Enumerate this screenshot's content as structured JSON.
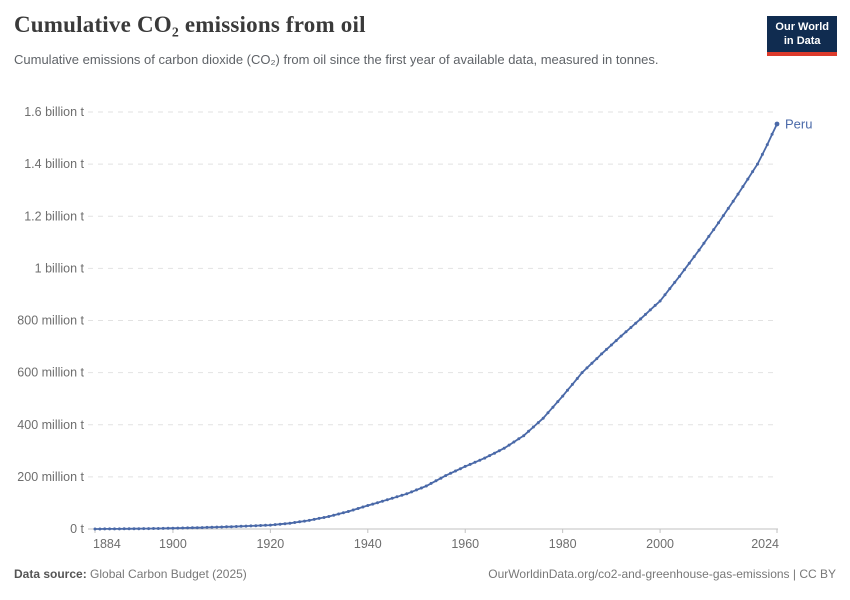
{
  "header": {
    "title": "Cumulative CO₂ emissions from oil",
    "subtitle": "Cumulative emissions of carbon dioxide (CO₂) from oil since the first year of available data, measured in tonnes.",
    "logo_line1": "Our World",
    "logo_line2": "in Data"
  },
  "chart_data": {
    "type": "line",
    "title": "Cumulative CO₂ emissions from oil",
    "unit": "tonnes",
    "xlabel": "",
    "ylabel": "",
    "grid": true,
    "x_range": [
      1884,
      2024
    ],
    "x_ticks": [
      1884,
      1900,
      1920,
      1940,
      1960,
      1980,
      2000,
      2024
    ],
    "y_range_million_tonnes": [
      0,
      1600
    ],
    "y_ticks": [
      {
        "value": 0,
        "label": "0 t"
      },
      {
        "value": 200,
        "label": "200 million t"
      },
      {
        "value": 400,
        "label": "400 million t"
      },
      {
        "value": 600,
        "label": "600 million t"
      },
      {
        "value": 800,
        "label": "800 million t"
      },
      {
        "value": 1000,
        "label": "1 billion t"
      },
      {
        "value": 1200,
        "label": "1.2 billion t"
      },
      {
        "value": 1400,
        "label": "1.4 billion t"
      },
      {
        "value": 1600,
        "label": "1.6 billion t"
      }
    ],
    "legend_position": "end-of-line-label",
    "series": [
      {
        "name": "Peru",
        "color": "#4a69a8",
        "units": "million tonnes",
        "points": [
          [
            1884,
            0
          ],
          [
            1888,
            0.4
          ],
          [
            1892,
            1
          ],
          [
            1896,
            1.8
          ],
          [
            1900,
            3
          ],
          [
            1904,
            4.5
          ],
          [
            1908,
            6.5
          ],
          [
            1912,
            9
          ],
          [
            1916,
            12
          ],
          [
            1920,
            15
          ],
          [
            1924,
            22
          ],
          [
            1928,
            33
          ],
          [
            1932,
            48
          ],
          [
            1936,
            67
          ],
          [
            1940,
            90
          ],
          [
            1944,
            112
          ],
          [
            1948,
            135
          ],
          [
            1952,
            165
          ],
          [
            1956,
            205
          ],
          [
            1960,
            240
          ],
          [
            1964,
            272
          ],
          [
            1968,
            310
          ],
          [
            1972,
            358
          ],
          [
            1976,
            425
          ],
          [
            1980,
            510
          ],
          [
            1984,
            600
          ],
          [
            1988,
            672
          ],
          [
            1992,
            740
          ],
          [
            1996,
            806
          ],
          [
            2000,
            875
          ],
          [
            2004,
            970
          ],
          [
            2008,
            1070
          ],
          [
            2012,
            1175
          ],
          [
            2016,
            1285
          ],
          [
            2020,
            1400
          ],
          [
            2022,
            1475
          ],
          [
            2024,
            1554
          ]
        ]
      }
    ]
  },
  "footer": {
    "source_label": "Data source:",
    "source_value": " Global Carbon Budget (2025)",
    "credit": "OurWorldinData.org/co2-and-greenhouse-gas-emissions | CC BY"
  },
  "colors": {
    "line": "#4a69a8",
    "grid": "#e2e2e2",
    "axis": "#c2c2c2",
    "tick_text": "#6e6e6e",
    "logo_bg": "#102c50",
    "logo_red": "#dc3a2b"
  }
}
